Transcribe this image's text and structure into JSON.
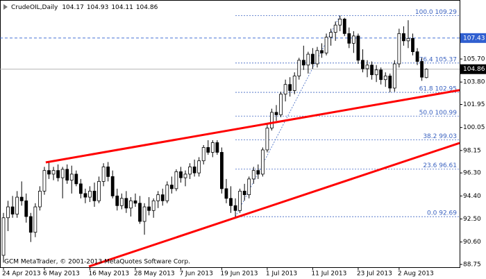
{
  "chart_data": {
    "type": "candlestick",
    "symbol": "CrudeOIL,Daily",
    "watermark": "GCM MetaTrader, © 2001-2013 MetaQuotes Software Corp.",
    "categories": [
      "24 Apr 2013",
      null,
      null,
      null,
      null,
      null,
      null,
      null,
      null,
      "6 May 2013",
      null,
      null,
      null,
      null,
      null,
      null,
      null,
      null,
      null,
      "16 May 2013",
      null,
      null,
      null,
      null,
      null,
      null,
      null,
      null,
      null,
      "28 May 2013",
      null,
      null,
      null,
      null,
      null,
      null,
      null,
      null,
      null,
      "7 Jun 2013",
      null,
      null,
      null,
      null,
      null,
      null,
      null,
      null,
      "19 Jun 2013",
      null,
      null,
      null,
      null,
      null,
      null,
      null,
      null,
      null,
      "1 Jul 2013",
      null,
      null,
      null,
      null,
      null,
      null,
      null,
      null,
      null,
      "11 Jul 2013",
      null,
      null,
      null,
      null,
      null,
      null,
      null,
      null,
      null,
      "23 Jul 2013",
      null,
      null,
      null,
      null,
      null,
      null,
      null,
      null,
      "2 Aug 2013",
      null,
      null,
      null,
      null,
      null,
      null
    ],
    "candles": [
      [
        89.5,
        93.0,
        88.9,
        92.6
      ],
      [
        92.6,
        94.0,
        91.5,
        93.5
      ],
      [
        93.5,
        94.4,
        92.6,
        92.9
      ],
      [
        92.9,
        94.8,
        92.6,
        94.3
      ],
      [
        94.3,
        95.6,
        93.6,
        94.0
      ],
      [
        94.0,
        94.6,
        92.2,
        92.7
      ],
      [
        92.7,
        93.0,
        90.6,
        91.4
      ],
      [
        91.4,
        93.8,
        91.0,
        93.5
      ],
      [
        93.5,
        95.2,
        93.2,
        94.8
      ],
      [
        94.8,
        96.8,
        94.5,
        96.5
      ],
      [
        96.5,
        97.2,
        95.8,
        96.2
      ],
      [
        96.2,
        96.8,
        95.7,
        96.5
      ],
      [
        96.5,
        97.0,
        95.6,
        95.9
      ],
      [
        95.9,
        96.8,
        94.2,
        96.6
      ],
      [
        96.6,
        97.0,
        95.4,
        95.7
      ],
      [
        95.7,
        96.9,
        94.6,
        96.2
      ],
      [
        96.2,
        96.5,
        95.2,
        95.4
      ],
      [
        95.4,
        95.8,
        94.2,
        94.6
      ],
      [
        94.6,
        95.0,
        93.8,
        94.3
      ],
      [
        94.3,
        95.2,
        93.9,
        94.8
      ],
      [
        94.8,
        95.5,
        93.5,
        94.0
      ],
      [
        94.0,
        96.0,
        93.8,
        95.6
      ],
      [
        95.6,
        97.1,
        95.2,
        96.8
      ],
      [
        96.8,
        97.2,
        95.6,
        96.0
      ],
      [
        96.0,
        96.5,
        94.2,
        94.4
      ],
      [
        94.4,
        95.0,
        93.2,
        93.6
      ],
      [
        93.6,
        94.6,
        93.3,
        94.2
      ],
      [
        94.2,
        94.8,
        93.0,
        93.4
      ],
      [
        93.4,
        94.3,
        92.7,
        94.0
      ],
      [
        94.0,
        94.6,
        93.5,
        93.8
      ],
      [
        93.8,
        94.4,
        92.1,
        92.3
      ],
      [
        92.3,
        93.8,
        91.2,
        93.5
      ],
      [
        93.5,
        94.3,
        92.8,
        93.2
      ],
      [
        93.2,
        94.2,
        92.6,
        94.0
      ],
      [
        94.0,
        94.8,
        93.4,
        94.5
      ],
      [
        94.5,
        95.0,
        93.6,
        94.0
      ],
      [
        94.0,
        95.6,
        93.8,
        95.3
      ],
      [
        95.3,
        96.0,
        94.6,
        95.0
      ],
      [
        95.0,
        96.6,
        94.8,
        96.4
      ],
      [
        96.4,
        96.8,
        95.5,
        95.9
      ],
      [
        95.9,
        96.5,
        95.2,
        96.2
      ],
      [
        96.2,
        97.1,
        95.8,
        96.8
      ],
      [
        96.8,
        97.4,
        96.0,
        96.3
      ],
      [
        96.3,
        97.6,
        96.0,
        97.3
      ],
      [
        97.3,
        98.6,
        97.0,
        98.4
      ],
      [
        98.4,
        99.0,
        97.8,
        98.0
      ],
      [
        98.0,
        99.0,
        97.6,
        98.8
      ],
      [
        98.8,
        99.0,
        97.8,
        98.0
      ],
      [
        98.0,
        98.4,
        94.6,
        95.0
      ],
      [
        95.0,
        95.8,
        93.8,
        94.2
      ],
      [
        94.2,
        95.2,
        93.0,
        93.6
      ],
      [
        93.6,
        94.2,
        92.69,
        93.2
      ],
      [
        93.2,
        95.0,
        93.0,
        94.8
      ],
      [
        94.8,
        95.4,
        94.0,
        94.5
      ],
      [
        94.5,
        96.0,
        94.2,
        95.8
      ],
      [
        95.8,
        96.8,
        95.4,
        96.5
      ],
      [
        96.5,
        97.0,
        95.8,
        96.2
      ],
      [
        96.2,
        98.4,
        96.0,
        98.2
      ],
      [
        98.2,
        100.3,
        98.0,
        100.0
      ],
      [
        100.0,
        101.6,
        99.8,
        101.3
      ],
      [
        101.3,
        101.9,
        100.6,
        101.1
      ],
      [
        101.1,
        103.0,
        100.9,
        102.8
      ],
      [
        102.8,
        104.0,
        102.2,
        103.6
      ],
      [
        103.6,
        104.2,
        102.6,
        103.1
      ],
      [
        103.1,
        104.6,
        102.8,
        104.3
      ],
      [
        104.3,
        105.8,
        104.0,
        105.6
      ],
      [
        105.6,
        106.8,
        104.8,
        105.2
      ],
      [
        105.2,
        106.3,
        104.5,
        106.1
      ],
      [
        106.1,
        106.6,
        104.9,
        105.3
      ],
      [
        105.3,
        106.7,
        105.0,
        106.4
      ],
      [
        106.4,
        107.0,
        105.8,
        106.2
      ],
      [
        106.2,
        107.8,
        106.0,
        107.5
      ],
      [
        107.5,
        108.2,
        106.8,
        107.9
      ],
      [
        107.9,
        108.8,
        107.2,
        108.5
      ],
      [
        108.5,
        109.29,
        108.0,
        109.0
      ],
      [
        109.0,
        109.1,
        107.6,
        107.8
      ],
      [
        107.8,
        108.3,
        106.6,
        107.0
      ],
      [
        107.0,
        108.0,
        106.2,
        107.6
      ],
      [
        107.6,
        107.8,
        105.3,
        105.6
      ],
      [
        105.6,
        106.5,
        104.6,
        104.9
      ],
      [
        104.9,
        105.6,
        104.2,
        105.2
      ],
      [
        105.2,
        105.5,
        104.0,
        104.4
      ],
      [
        104.4,
        105.2,
        103.8,
        104.8
      ],
      [
        104.8,
        105.0,
        103.6,
        104.0
      ],
      [
        104.0,
        104.6,
        103.4,
        104.3
      ],
      [
        104.3,
        104.5,
        102.95,
        103.3
      ],
      [
        103.3,
        105.6,
        103.0,
        105.3
      ],
      [
        105.3,
        108.2,
        105.0,
        107.8
      ],
      [
        107.8,
        108.4,
        106.8,
        107.2
      ],
      [
        107.2,
        108.9,
        106.6,
        107.4
      ],
      [
        107.4,
        107.8,
        106.0,
        106.3
      ],
      [
        106.3,
        106.6,
        105.2,
        105.5
      ],
      [
        105.5,
        105.8,
        103.9,
        104.2
      ],
      [
        104.17,
        104.93,
        104.11,
        104.86
      ]
    ],
    "up_color": "#ffffff",
    "down_color": "#000000",
    "ylim": [
      88.52,
      110.57
    ],
    "yticks": [
      {
        "value": 105.7,
        "label": "105.70"
      },
      {
        "value": 103.8,
        "label": "103.80"
      },
      101.95,
      100.05,
      98.15,
      {
        "value": 96.3,
        "label": "96.30"
      },
      {
        "value": 94.4,
        "label": "94.40"
      },
      {
        "value": 92.5,
        "label": "92.50"
      },
      {
        "value": 90.6,
        "label": "90.60"
      },
      88.75
    ],
    "hline": {
      "value": 107.43,
      "color": "#2f5fd0"
    },
    "current_price_color": "#000000",
    "trendlines": [
      {
        "x": [
          9.3,
          100.3
        ],
        "y": [
          97.17,
          103.13
        ],
        "color": "#ff0000"
      },
      {
        "x": [
          18.8,
          100.3
        ],
        "y": [
          88.58,
          98.77
        ],
        "color": "#ff0000"
      }
    ],
    "fibonacci": {
      "color": "#3a62c0",
      "x": [
        51,
        74
      ],
      "levels": [
        {
          "value": 109.29,
          "label": "100.0 109.29"
        },
        {
          "value": 105.37,
          "label": "76.4 105.37"
        },
        {
          "value": 102.95,
          "label": "61.8 102.95"
        },
        {
          "value": 100.99,
          "label": "50.0 100.99"
        },
        {
          "value": 99.03,
          "label": "38.2 99.03"
        },
        {
          "value": 96.61,
          "label": "23.6 96.61"
        },
        {
          "value": 92.69,
          "label": "0.0 92.69"
        }
      ]
    }
  }
}
